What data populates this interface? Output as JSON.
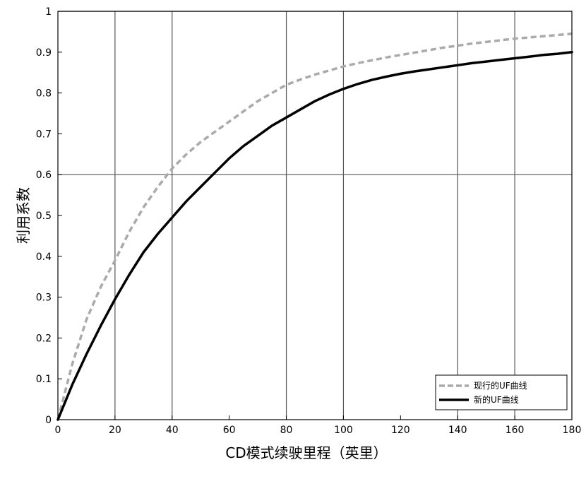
{
  "chart_data": {
    "type": "line",
    "title": "",
    "xlabel": "CD模式续驶里程（英里）",
    "ylabel": "利用系数",
    "xlim": [
      0,
      180
    ],
    "ylim": [
      0,
      1
    ],
    "xticks": [
      0,
      20,
      40,
      60,
      80,
      100,
      120,
      140,
      160,
      180
    ],
    "yticks": [
      0,
      0.1,
      0.2,
      0.3,
      0.4,
      0.5,
      0.6,
      0.7,
      0.8,
      0.9,
      1
    ],
    "ytick_labels": [
      "0",
      "0.1",
      "0.2",
      "0.3",
      "0.4",
      "0.5",
      "0.6",
      "0.7",
      "0.8",
      "0.9",
      "1"
    ],
    "grid": {
      "vertical_at_x": [
        20,
        40,
        80,
        100,
        140,
        160
      ],
      "horizontal_at_y": [
        0.6,
        1.0
      ],
      "color": "#555555"
    },
    "legend_position": "bottom-right",
    "x": [
      0,
      5,
      10,
      15,
      20,
      25,
      30,
      35,
      40,
      45,
      50,
      55,
      60,
      65,
      70,
      75,
      80,
      85,
      90,
      95,
      100,
      105,
      110,
      115,
      120,
      125,
      130,
      135,
      140,
      145,
      150,
      155,
      160,
      165,
      170,
      175,
      180
    ],
    "series": [
      {
        "name": "现行的UF曲线",
        "style": "dashed",
        "color": "#aaaaaa",
        "values": [
          0,
          0.135,
          0.245,
          0.325,
          0.39,
          0.46,
          0.52,
          0.57,
          0.615,
          0.65,
          0.68,
          0.705,
          0.73,
          0.755,
          0.78,
          0.8,
          0.82,
          0.833,
          0.845,
          0.855,
          0.865,
          0.873,
          0.88,
          0.887,
          0.893,
          0.899,
          0.905,
          0.911,
          0.916,
          0.921,
          0.925,
          0.929,
          0.933,
          0.936,
          0.939,
          0.942,
          0.945
        ]
      },
      {
        "name": "新的UF曲线",
        "style": "solid",
        "color": "#000000",
        "values": [
          0,
          0.085,
          0.16,
          0.23,
          0.295,
          0.355,
          0.41,
          0.455,
          0.495,
          0.535,
          0.57,
          0.605,
          0.64,
          0.67,
          0.695,
          0.72,
          0.74,
          0.76,
          0.78,
          0.796,
          0.81,
          0.822,
          0.832,
          0.84,
          0.847,
          0.853,
          0.858,
          0.863,
          0.868,
          0.873,
          0.877,
          0.881,
          0.885,
          0.889,
          0.893,
          0.896,
          0.9
        ]
      }
    ]
  }
}
